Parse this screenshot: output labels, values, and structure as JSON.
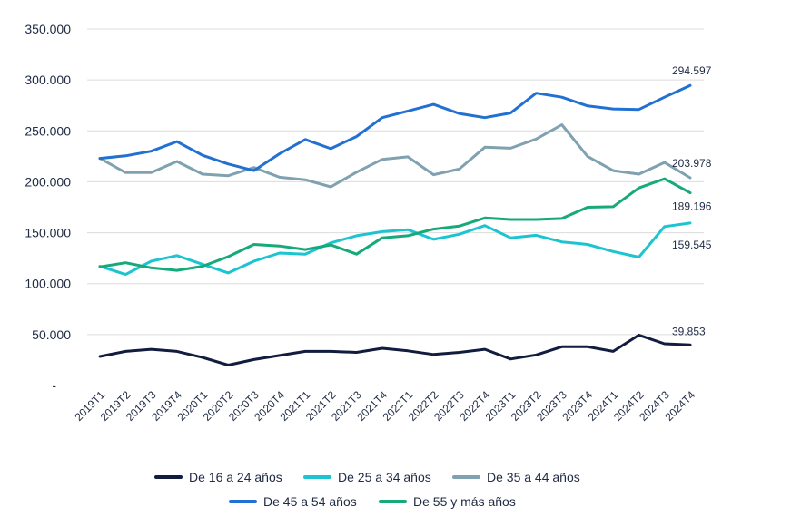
{
  "chart_data": {
    "type": "line",
    "categories": [
      "2019T1",
      "2019T2",
      "2019T3",
      "2019T4",
      "2020T1",
      "2020T2",
      "2020T3",
      "2020T4",
      "2021T1",
      "2021T2",
      "2021T3",
      "2021T4",
      "2022T1",
      "2022T2",
      "2022T3",
      "2022T4",
      "2023T1",
      "2023T2",
      "2023T3",
      "2023T4",
      "2024T1",
      "2024T2",
      "2024T3",
      "2024T4"
    ],
    "y_ticks": [
      "-",
      "50.000",
      "100.000",
      "150.000",
      "200.000",
      "250.000",
      "300.000",
      "350.000"
    ],
    "ylim": [
      0,
      350000
    ],
    "grid": "horizontal",
    "legend_position": "bottom",
    "series": [
      {
        "name": "De 16 a 24 años",
        "color": "#111c3f",
        "end_label": "39.853",
        "values": [
          28500,
          33500,
          35500,
          33500,
          27500,
          20000,
          25500,
          29500,
          33500,
          33500,
          32500,
          36500,
          34000,
          30500,
          32500,
          35500,
          26000,
          30000,
          38000,
          38000,
          33500,
          49500,
          41000,
          39853
        ]
      },
      {
        "name": "De 25 a 34 años",
        "color": "#1cc4d2",
        "end_label": "159.545",
        "values": [
          117000,
          109000,
          122000,
          127500,
          119000,
          110500,
          122000,
          130000,
          129000,
          140000,
          147000,
          151000,
          153000,
          143500,
          148500,
          157000,
          145000,
          147500,
          141000,
          138500,
          131500,
          126000,
          156000,
          159545
        ]
      },
      {
        "name": "De 35 a 44 años",
        "color": "#7fa1b0",
        "end_label": "203.978",
        "values": [
          223000,
          209000,
          209000,
          220000,
          207500,
          206000,
          214000,
          204500,
          202000,
          195000,
          209500,
          222000,
          224500,
          207000,
          212500,
          234000,
          233000,
          242000,
          256000,
          225000,
          211000,
          207500,
          219000,
          203978
        ]
      },
      {
        "name": "De 45 a 54 años",
        "color": "#2170d2",
        "end_label": "294.597",
        "values": [
          223000,
          225500,
          230000,
          239500,
          226000,
          217500,
          211000,
          227500,
          241500,
          232500,
          244500,
          263000,
          269500,
          276000,
          267000,
          263000,
          267500,
          287000,
          283000,
          274500,
          271500,
          271000,
          283000,
          294597
        ]
      },
      {
        "name": "De 55 y más años",
        "color": "#16a979",
        "end_label": "189.196",
        "values": [
          116500,
          120500,
          115500,
          113000,
          117000,
          126500,
          138500,
          137000,
          133500,
          138000,
          129000,
          145000,
          147000,
          153500,
          156500,
          164500,
          163000,
          163000,
          164000,
          175000,
          175500,
          194000,
          203000,
          189196
        ]
      }
    ]
  }
}
